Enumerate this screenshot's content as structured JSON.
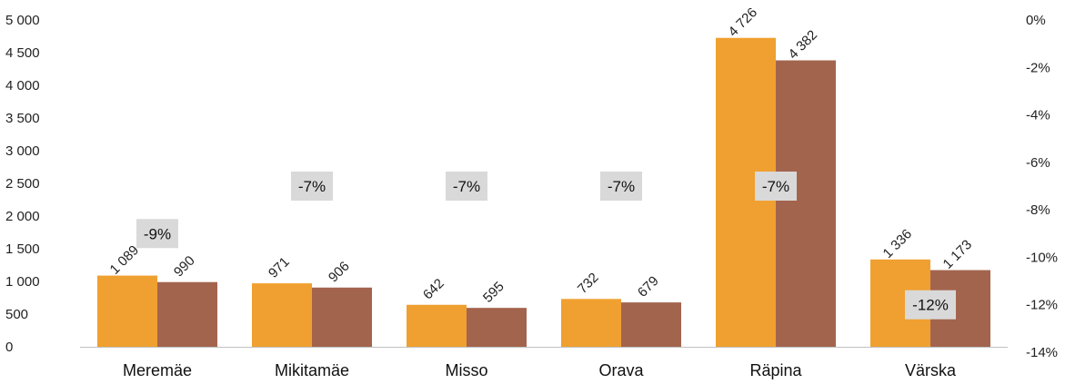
{
  "chart_data": {
    "type": "bar",
    "categories": [
      "Meremäe",
      "Mikitamäe",
      "Misso",
      "Orava",
      "Räpina",
      "Värska"
    ],
    "series": [
      {
        "values": [
          1089,
          971,
          642,
          732,
          4726,
          1336
        ],
        "labels": [
          "1 089",
          "971",
          "642",
          "732",
          "4 726",
          "1 336"
        ]
      },
      {
        "values": [
          990,
          906,
          595,
          679,
          4382,
          1173
        ],
        "labels": [
          "990",
          "906",
          "595",
          "679",
          "4 382",
          "1 173"
        ]
      }
    ],
    "change": {
      "values": [
        -9,
        -7,
        -7,
        -7,
        -7,
        -12
      ],
      "labels": [
        "-9%",
        "-7%",
        "-7%",
        "-7%",
        "-7%",
        "-12%"
      ]
    },
    "y_left": {
      "ylim": [
        0,
        5000
      ],
      "ticks": [
        0,
        500,
        1000,
        1500,
        2000,
        2500,
        3000,
        3500,
        4000,
        4500,
        5000
      ],
      "tick_labels": [
        "0",
        "500",
        "1 000",
        "1 500",
        "2 000",
        "2 500",
        "3 000",
        "3 500",
        "4 000",
        "4 500",
        "5 000"
      ]
    },
    "y_right": {
      "ylim": [
        -14,
        0
      ],
      "ticks": [
        0,
        -2,
        -4,
        -6,
        -8,
        -10,
        -12,
        -14
      ],
      "tick_labels": [
        "0%",
        "-2%",
        "-4%",
        "-6%",
        "-8%",
        "-10%",
        "-12%",
        "-14%"
      ]
    },
    "grid": false,
    "legend": "none",
    "colors": {
      "series1": "#F0A030",
      "series2": "#A3644D",
      "label_box": "#D9D9D9",
      "axis": "#BFBFBF"
    }
  }
}
